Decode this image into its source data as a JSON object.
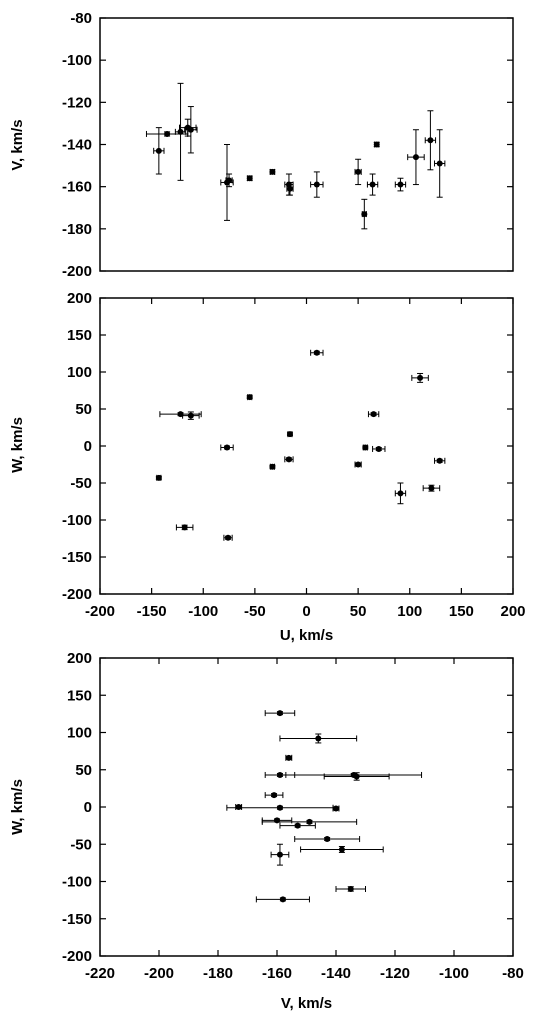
{
  "chart_data": [
    {
      "type": "scatter",
      "title": "",
      "xlabel": "",
      "ylabel": "V, km/s",
      "xlim": [
        -200,
        200
      ],
      "ylim": [
        -200,
        -80
      ],
      "xticks": [],
      "yticks": [
        -80,
        -100,
        -120,
        -140,
        -160,
        -180,
        -200
      ],
      "grid": false,
      "series": [
        {
          "points": [
            {
              "x": -143,
              "y": -143,
              "xerr": 5,
              "yerr": 11
            },
            {
              "x": -135,
              "y": -135,
              "xerr": 20,
              "yerr": 1
            },
            {
              "x": -122,
              "y": -134,
              "xerr": 5,
              "yerr": 23
            },
            {
              "x": -115,
              "y": -132,
              "xerr": 8,
              "yerr": 4
            },
            {
              "x": -112,
              "y": -133,
              "xerr": 6,
              "yerr": 11
            },
            {
              "x": -77,
              "y": -158,
              "xerr": 6,
              "yerr": 18
            },
            {
              "x": -75,
              "y": -157,
              "xerr": 3,
              "yerr": 3
            },
            {
              "x": -55,
              "y": -156,
              "xerr": 2,
              "yerr": 1
            },
            {
              "x": -33,
              "y": -153,
              "xerr": 2,
              "yerr": 1
            },
            {
              "x": -17,
              "y": -159,
              "xerr": 4,
              "yerr": 5
            },
            {
              "x": -16,
              "y": -161,
              "xerr": 3,
              "yerr": 3
            },
            {
              "x": 10,
              "y": -159,
              "xerr": 6,
              "yerr": 6
            },
            {
              "x": 50,
              "y": -153,
              "xerr": 3,
              "yerr": 6
            },
            {
              "x": 56,
              "y": -173,
              "xerr": 2,
              "yerr": 7
            },
            {
              "x": 64,
              "y": -159,
              "xerr": 5,
              "yerr": 5
            },
            {
              "x": 68,
              "y": -140,
              "xerr": 2,
              "yerr": 1
            },
            {
              "x": 91,
              "y": -159,
              "xerr": 5,
              "yerr": 3
            },
            {
              "x": 106,
              "y": -146,
              "xerr": 8,
              "yerr": 13
            },
            {
              "x": 120,
              "y": -138,
              "xerr": 5,
              "yerr": 14
            },
            {
              "x": 129,
              "y": -149,
              "xerr": 5,
              "yerr": 16
            }
          ]
        }
      ]
    },
    {
      "type": "scatter",
      "title": "",
      "xlabel": "U, km/s",
      "ylabel": "W, km/s",
      "xlim": [
        -200,
        200
      ],
      "ylim": [
        -200,
        200
      ],
      "xticks": [
        -200,
        -150,
        -100,
        -50,
        0,
        50,
        100,
        150,
        200
      ],
      "yticks": [
        200,
        150,
        100,
        50,
        0,
        -50,
        -100,
        -150,
        -200
      ],
      "grid": false,
      "series": [
        {
          "points": [
            {
              "x": 10,
              "y": 126,
              "xerr": 6,
              "yerr": 2
            },
            {
              "x": 110,
              "y": 92,
              "xerr": 8,
              "yerr": 6
            },
            {
              "x": -55,
              "y": 66,
              "xerr": 2,
              "yerr": 2
            },
            {
              "x": 65,
              "y": 43,
              "xerr": 5,
              "yerr": 2
            },
            {
              "x": -122,
              "y": 43,
              "xerr": 20,
              "yerr": 2
            },
            {
              "x": -112,
              "y": 41,
              "xerr": 8,
              "yerr": 5
            },
            {
              "x": -16,
              "y": 16,
              "xerr": 2,
              "yerr": 2
            },
            {
              "x": -77,
              "y": -2,
              "xerr": 6,
              "yerr": 2
            },
            {
              "x": 57,
              "y": -2,
              "xerr": 2,
              "yerr": 2
            },
            {
              "x": 70,
              "y": -4,
              "xerr": 6,
              "yerr": 2
            },
            {
              "x": -17,
              "y": -18,
              "xerr": 4,
              "yerr": 2
            },
            {
              "x": 129,
              "y": -20,
              "xerr": 5,
              "yerr": 2
            },
            {
              "x": 50,
              "y": -25,
              "xerr": 3,
              "yerr": 2
            },
            {
              "x": -33,
              "y": -28,
              "xerr": 2,
              "yerr": 2
            },
            {
              "x": -143,
              "y": -43,
              "xerr": 2,
              "yerr": 2
            },
            {
              "x": 121,
              "y": -57,
              "xerr": 8,
              "yerr": 4
            },
            {
              "x": 91,
              "y": -64,
              "xerr": 5,
              "yerr": 14
            },
            {
              "x": -118,
              "y": -110,
              "xerr": 8,
              "yerr": 3
            },
            {
              "x": -76,
              "y": -124,
              "xerr": 4,
              "yerr": 2
            }
          ]
        }
      ]
    },
    {
      "type": "scatter",
      "title": "",
      "xlabel": "V, km/s",
      "ylabel": "W, km/s",
      "xlim": [
        -220,
        -80
      ],
      "ylim": [
        -200,
        200
      ],
      "xticks": [
        -220,
        -200,
        -180,
        -160,
        -140,
        -120,
        -100,
        -80
      ],
      "yticks": [
        200,
        150,
        100,
        50,
        0,
        -50,
        -100,
        -150,
        -200
      ],
      "grid": false,
      "series": [
        {
          "points": [
            {
              "x": -159,
              "y": 126,
              "xerr": 5,
              "yerr": 2
            },
            {
              "x": -146,
              "y": 92,
              "xerr": 13,
              "yerr": 6
            },
            {
              "x": -156,
              "y": 66,
              "xerr": 1,
              "yerr": 2
            },
            {
              "x": -159,
              "y": 43,
              "xerr": 5,
              "yerr": 2
            },
            {
              "x": -134,
              "y": 43,
              "xerr": 23,
              "yerr": 2
            },
            {
              "x": -133,
              "y": 41,
              "xerr": 11,
              "yerr": 5
            },
            {
              "x": -161,
              "y": 16,
              "xerr": 3,
              "yerr": 2
            },
            {
              "x": -173,
              "y": 0,
              "xerr": 1,
              "yerr": 2
            },
            {
              "x": -159,
              "y": -1,
              "xerr": 18,
              "yerr": 2
            },
            {
              "x": -140,
              "y": -2,
              "xerr": 1,
              "yerr": 2
            },
            {
              "x": -160,
              "y": -18,
              "xerr": 5,
              "yerr": 2
            },
            {
              "x": -149,
              "y": -20,
              "xerr": 16,
              "yerr": 2
            },
            {
              "x": -153,
              "y": -25,
              "xerr": 6,
              "yerr": 2
            },
            {
              "x": -143,
              "y": -43,
              "xerr": 11,
              "yerr": 2
            },
            {
              "x": -138,
              "y": -57,
              "xerr": 14,
              "yerr": 4
            },
            {
              "x": -159,
              "y": -64,
              "xerr": 3,
              "yerr": 14
            },
            {
              "x": -135,
              "y": -110,
              "xerr": 5,
              "yerr": 3
            },
            {
              "x": -158,
              "y": -124,
              "xerr": 9,
              "yerr": 2
            }
          ]
        }
      ]
    }
  ]
}
